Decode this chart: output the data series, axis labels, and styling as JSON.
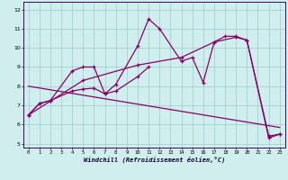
{
  "xlabel": "Windchill (Refroidissement éolien,°C)",
  "background_color": "#d0eeee",
  "line_color": "#880066",
  "grid_color": "#99cccc",
  "xlim": [
    -0.5,
    23.5
  ],
  "ylim": [
    4.8,
    12.4
  ],
  "xticks": [
    0,
    1,
    2,
    3,
    4,
    5,
    6,
    7,
    8,
    9,
    10,
    11,
    12,
    13,
    14,
    15,
    16,
    17,
    18,
    19,
    20,
    21,
    22,
    23
  ],
  "yticks": [
    5,
    6,
    7,
    8,
    9,
    10,
    11,
    12
  ],
  "series1_x": [
    0,
    1,
    2,
    4,
    5,
    6,
    7,
    8,
    10,
    11,
    12,
    14,
    15,
    16,
    17,
    18,
    19,
    20,
    22,
    23
  ],
  "series1_y": [
    6.5,
    7.1,
    7.25,
    8.8,
    9.0,
    9.0,
    7.6,
    8.1,
    10.1,
    11.5,
    11.0,
    9.3,
    9.5,
    8.2,
    10.3,
    10.6,
    10.6,
    10.4,
    5.3,
    5.5
  ],
  "series2_x": [
    0,
    1,
    2,
    4,
    5,
    6,
    7,
    8,
    10,
    11
  ],
  "series2_y": [
    6.5,
    7.1,
    7.25,
    7.75,
    7.85,
    7.9,
    7.6,
    7.75,
    8.5,
    9.0
  ],
  "series3_x": [
    0,
    5,
    10,
    14,
    17,
    19,
    20,
    22,
    23
  ],
  "series3_y": [
    6.5,
    8.3,
    9.1,
    9.5,
    10.3,
    10.55,
    10.4,
    5.4,
    5.5
  ],
  "series4_x": [
    0,
    23
  ],
  "series4_y": [
    8.0,
    5.85
  ]
}
